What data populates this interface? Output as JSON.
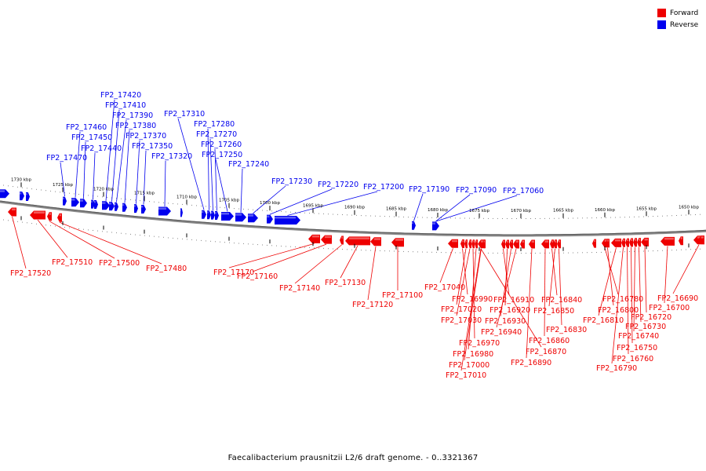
{
  "legend": {
    "forward_label": "Forward",
    "reverse_label": "Reverse",
    "forward_color": "#ee0000",
    "reverse_color": "#0000ee"
  },
  "caption": "Faecalibacterium prausnitzii L2/6 draft genome. - 0..3321367",
  "ruler_ticks": [
    "1730 kbp",
    "1725 kbp",
    "1720 kbp",
    "1715 kbp",
    "1710 kbp",
    "1705 kbp",
    "1700 kbp",
    "1695 kbp",
    "1690 kbp",
    "1685 kbp",
    "1680 kbp",
    "1675 kbp",
    "1670 kbp",
    "1665 kbp",
    "1660 kbp",
    "1655 kbp",
    "1650 kbp"
  ],
  "genes": {
    "reverse": [
      "FP2_17470",
      "FP2_17460",
      "FP2_17450",
      "FP2_17440",
      "FP2_17420",
      "FP2_17410",
      "FP2_17390",
      "FP2_17380",
      "FP2_17370",
      "FP2_17350",
      "FP2_17320",
      "FP2_17310",
      "FP2_17280",
      "FP2_17270",
      "FP2_17260",
      "FP2_17250",
      "FP2_17240",
      "FP2_17230",
      "FP2_17220",
      "FP2_17200",
      "FP2_17190",
      "FP2_17090",
      "FP2_17060"
    ],
    "forward": [
      "FP2_17520",
      "FP2_17510",
      "FP2_17500",
      "FP2_17480",
      "FP2_17170",
      "FP2_17160",
      "FP2_17140",
      "FP2_17130",
      "FP2_17120",
      "FP2_17100",
      "FP2_17040",
      "FP2_16990",
      "FP2_17020",
      "FP2_17030",
      "FP2_16970",
      "FP2_16980",
      "FP2_17000",
      "FP2_17010",
      "FP2_16910",
      "FP2_16920",
      "FP2_16930",
      "FP2_16940",
      "FP2_16840",
      "FP2_16850",
      "FP2_16830",
      "FP2_16860",
      "FP2_16870",
      "FP2_16890",
      "FP2_16780",
      "FP2_16800",
      "FP2_16810",
      "FP2_16790",
      "FP2_16760",
      "FP2_16750",
      "FP2_16740",
      "FP2_16730",
      "FP2_16720",
      "FP2_16700",
      "FP2_16690"
    ]
  }
}
